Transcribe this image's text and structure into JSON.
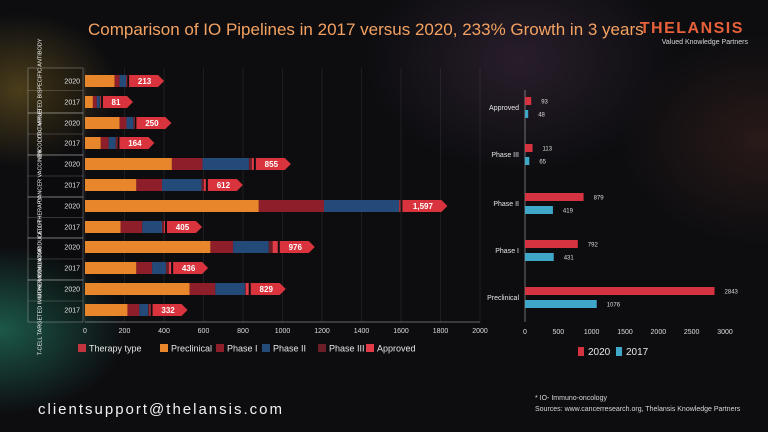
{
  "title": "Comparison of IO Pipelines in 2017 versus 2020, 233% Growth in 3 years",
  "brand": {
    "name": "THELANSIS",
    "tagline": "Valued Knowledge Partners"
  },
  "contact": "clientsupport@thelansis.com",
  "notes": {
    "footnote": "* IO- Immuno-oncology",
    "sources": "Sources:  www.cancerresearch.org, Thelansis Knowledge Partners"
  },
  "colors": {
    "preclinical": "#e8862c",
    "phase1": "#8e1f2a",
    "phase2": "#244a7a",
    "phase3": "#6a1f28",
    "approved": "#e03b46",
    "total_label": "#d9343e",
    "y2020": "#d63340",
    "y2017": "#3fa8c8"
  },
  "chart_data": [
    {
      "type": "bar",
      "orientation": "horizontal",
      "stacked": true,
      "groups": [
        "CD3-TARGETED BISPECIFIC ANTIBODY",
        "ONCOLYTIC VIRUS",
        "CANCER VACCINES",
        "CELL THERAPY",
        "OTHER IMMUNOMODULATOR",
        "T-CELL TARGETED IMMUNOMODULATOR"
      ],
      "years": [
        "2020",
        "2017"
      ],
      "series": [
        {
          "name": "Preclinical",
          "values": [
            [
              150,
              40
            ],
            [
              175,
              80
            ],
            [
              440,
              260
            ],
            [
              880,
              180
            ],
            [
              635,
              260
            ],
            [
              530,
              215
            ]
          ]
        },
        {
          "name": "Phase I",
          "values": [
            [
              25,
              20
            ],
            [
              35,
              40
            ],
            [
              155,
              130
            ],
            [
              330,
              110
            ],
            [
              115,
              80
            ],
            [
              130,
              60
            ]
          ]
        },
        {
          "name": "Phase II",
          "values": [
            [
              33,
              15
            ],
            [
              35,
              35
            ],
            [
              235,
              200
            ],
            [
              380,
              100
            ],
            [
              180,
              70
            ],
            [
              150,
              45
            ]
          ]
        },
        {
          "name": "Phase III",
          "values": [
            [
              3,
              3
            ],
            [
              3,
              6
            ],
            [
              15,
              12
            ],
            [
              2,
              10
            ],
            [
              20,
              15
            ],
            [
              4,
              7
            ]
          ]
        },
        {
          "name": "Approved",
          "values": [
            [
              2,
              3
            ],
            [
              2,
              3
            ],
            [
              10,
              10
            ],
            [
              5,
              5
            ],
            [
              26,
              11
            ],
            [
              15,
              5
            ]
          ]
        }
      ],
      "totals": [
        [
          "213",
          "81"
        ],
        [
          "250",
          "164"
        ],
        [
          "855",
          "612"
        ],
        [
          "1,597",
          "405"
        ],
        [
          "976",
          "436"
        ],
        [
          "829",
          "332"
        ]
      ],
      "legend": [
        "Therapy type",
        "Preclinical",
        "Phase I",
        "Phase II",
        "Phase III",
        "Approved"
      ],
      "xlim": [
        0,
        2000
      ],
      "xticks": [
        "0",
        "200",
        "400",
        "600",
        "800",
        "1000",
        "1200",
        "1400",
        "1600",
        "1800",
        "2000"
      ]
    },
    {
      "type": "bar",
      "orientation": "horizontal",
      "categories": [
        "Approved",
        "Phase III",
        "Phase II",
        "Phase I",
        "Preclinical"
      ],
      "series": [
        {
          "name": "2020",
          "values": [
            93,
            113,
            879,
            792,
            2843
          ]
        },
        {
          "name": "2017",
          "values": [
            48,
            65,
            419,
            431,
            1076
          ]
        }
      ],
      "labels": {
        "2020": [
          "93",
          "113",
          "879",
          "792",
          "2843"
        ],
        "2017": [
          "48",
          "65",
          "419",
          "431",
          "1076"
        ]
      },
      "xlim": [
        0,
        3000
      ],
      "xticks": [
        "0",
        "500",
        "1000",
        "1500",
        "2000",
        "2500",
        "3000"
      ],
      "legend": [
        "2020",
        "2017"
      ]
    }
  ]
}
